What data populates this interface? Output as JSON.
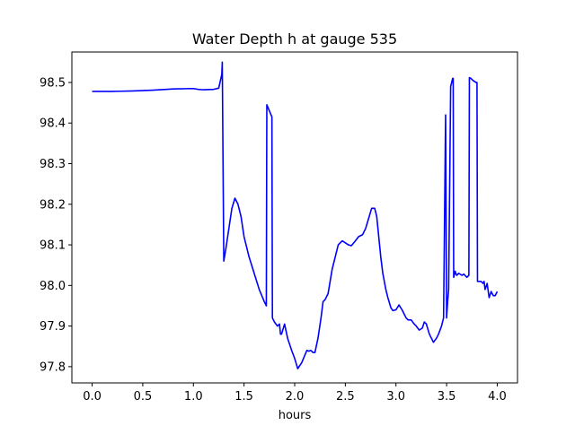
{
  "chart_data": {
    "type": "line",
    "title": "Water Depth h at gauge 535",
    "xlabel": "hours",
    "ylabel": "",
    "xlim": [
      -0.2,
      4.2
    ],
    "ylim": [
      97.76,
      98.575
    ],
    "xticks": [
      0.0,
      0.5,
      1.0,
      1.5,
      2.0,
      2.5,
      3.0,
      3.5,
      4.0
    ],
    "xtick_labels": [
      "0.0",
      "0.5",
      "1.0",
      "1.5",
      "2.0",
      "2.5",
      "3.0",
      "3.5",
      "4.0"
    ],
    "yticks": [
      97.8,
      97.9,
      98.0,
      98.1,
      98.2,
      98.3,
      98.4,
      98.5
    ],
    "ytick_labels": [
      "97.8",
      "97.9",
      "98.0",
      "98.1",
      "98.2",
      "98.3",
      "98.4",
      "98.5"
    ],
    "grid": false,
    "series": [
      {
        "color": "#0000ff",
        "x": [
          0.0,
          0.2,
          0.4,
          0.6,
          0.8,
          1.0,
          1.05,
          1.1,
          1.2,
          1.25,
          1.28,
          1.285,
          1.3,
          1.32,
          1.35,
          1.38,
          1.41,
          1.44,
          1.47,
          1.5,
          1.55,
          1.6,
          1.65,
          1.7,
          1.72,
          1.725,
          1.75,
          1.775,
          1.78,
          1.8,
          1.83,
          1.85,
          1.86,
          1.87,
          1.9,
          1.93,
          1.97,
          2.0,
          2.03,
          2.07,
          2.1,
          2.12,
          2.14,
          2.16,
          2.18,
          2.2,
          2.23,
          2.26,
          2.28,
          2.3,
          2.33,
          2.35,
          2.37,
          2.4,
          2.43,
          2.47,
          2.5,
          2.53,
          2.56,
          2.6,
          2.63,
          2.67,
          2.7,
          2.73,
          2.76,
          2.79,
          2.81,
          2.83,
          2.85,
          2.87,
          2.9,
          2.92,
          2.95,
          2.97,
          3.0,
          3.03,
          3.06,
          3.08,
          3.1,
          3.12,
          3.15,
          3.18,
          3.2,
          3.23,
          3.26,
          3.28,
          3.3,
          3.33,
          3.35,
          3.37,
          3.4,
          3.42,
          3.45,
          3.47,
          3.49,
          3.5,
          3.505,
          3.51,
          3.52,
          3.54,
          3.56,
          3.565,
          3.57,
          3.58,
          3.585,
          3.59,
          3.6,
          3.62,
          3.65,
          3.67,
          3.7,
          3.72,
          3.725,
          3.74,
          3.76,
          3.79,
          3.8,
          3.805,
          3.82,
          3.84,
          3.86,
          3.87,
          3.88,
          3.9,
          3.92,
          3.94,
          3.96,
          3.98,
          4.0
        ],
        "y": [
          98.478,
          98.478,
          98.479,
          98.481,
          98.484,
          98.485,
          98.483,
          98.482,
          98.483,
          98.486,
          98.52,
          98.55,
          98.06,
          98.09,
          98.14,
          98.19,
          98.215,
          98.2,
          98.17,
          98.12,
          98.07,
          98.03,
          97.99,
          97.96,
          97.95,
          98.445,
          98.43,
          98.415,
          97.92,
          97.91,
          97.9,
          97.905,
          97.88,
          97.88,
          97.905,
          97.87,
          97.84,
          97.82,
          97.795,
          97.81,
          97.828,
          97.84,
          97.838,
          97.84,
          97.835,
          97.835,
          97.87,
          97.92,
          97.96,
          97.965,
          97.98,
          98.01,
          98.04,
          98.07,
          98.1,
          98.11,
          98.105,
          98.1,
          98.098,
          98.11,
          98.12,
          98.125,
          98.14,
          98.165,
          98.19,
          98.19,
          98.17,
          98.12,
          98.07,
          98.03,
          97.99,
          97.97,
          97.945,
          97.938,
          97.94,
          97.952,
          97.94,
          97.93,
          97.92,
          97.915,
          97.915,
          97.905,
          97.9,
          97.89,
          97.895,
          97.91,
          97.905,
          97.88,
          97.87,
          97.86,
          97.87,
          97.88,
          97.9,
          97.92,
          98.42,
          97.92,
          97.94,
          97.96,
          97.99,
          98.49,
          98.51,
          98.51,
          98.02,
          98.03,
          98.035,
          98.03,
          98.025,
          98.03,
          98.025,
          98.028,
          98.02,
          98.025,
          98.512,
          98.51,
          98.505,
          98.5,
          98.5,
          98.01,
          98.01,
          98.01,
          98.005,
          98.01,
          97.99,
          98.005,
          97.97,
          97.985,
          97.975,
          97.975,
          97.985
        ]
      }
    ]
  }
}
